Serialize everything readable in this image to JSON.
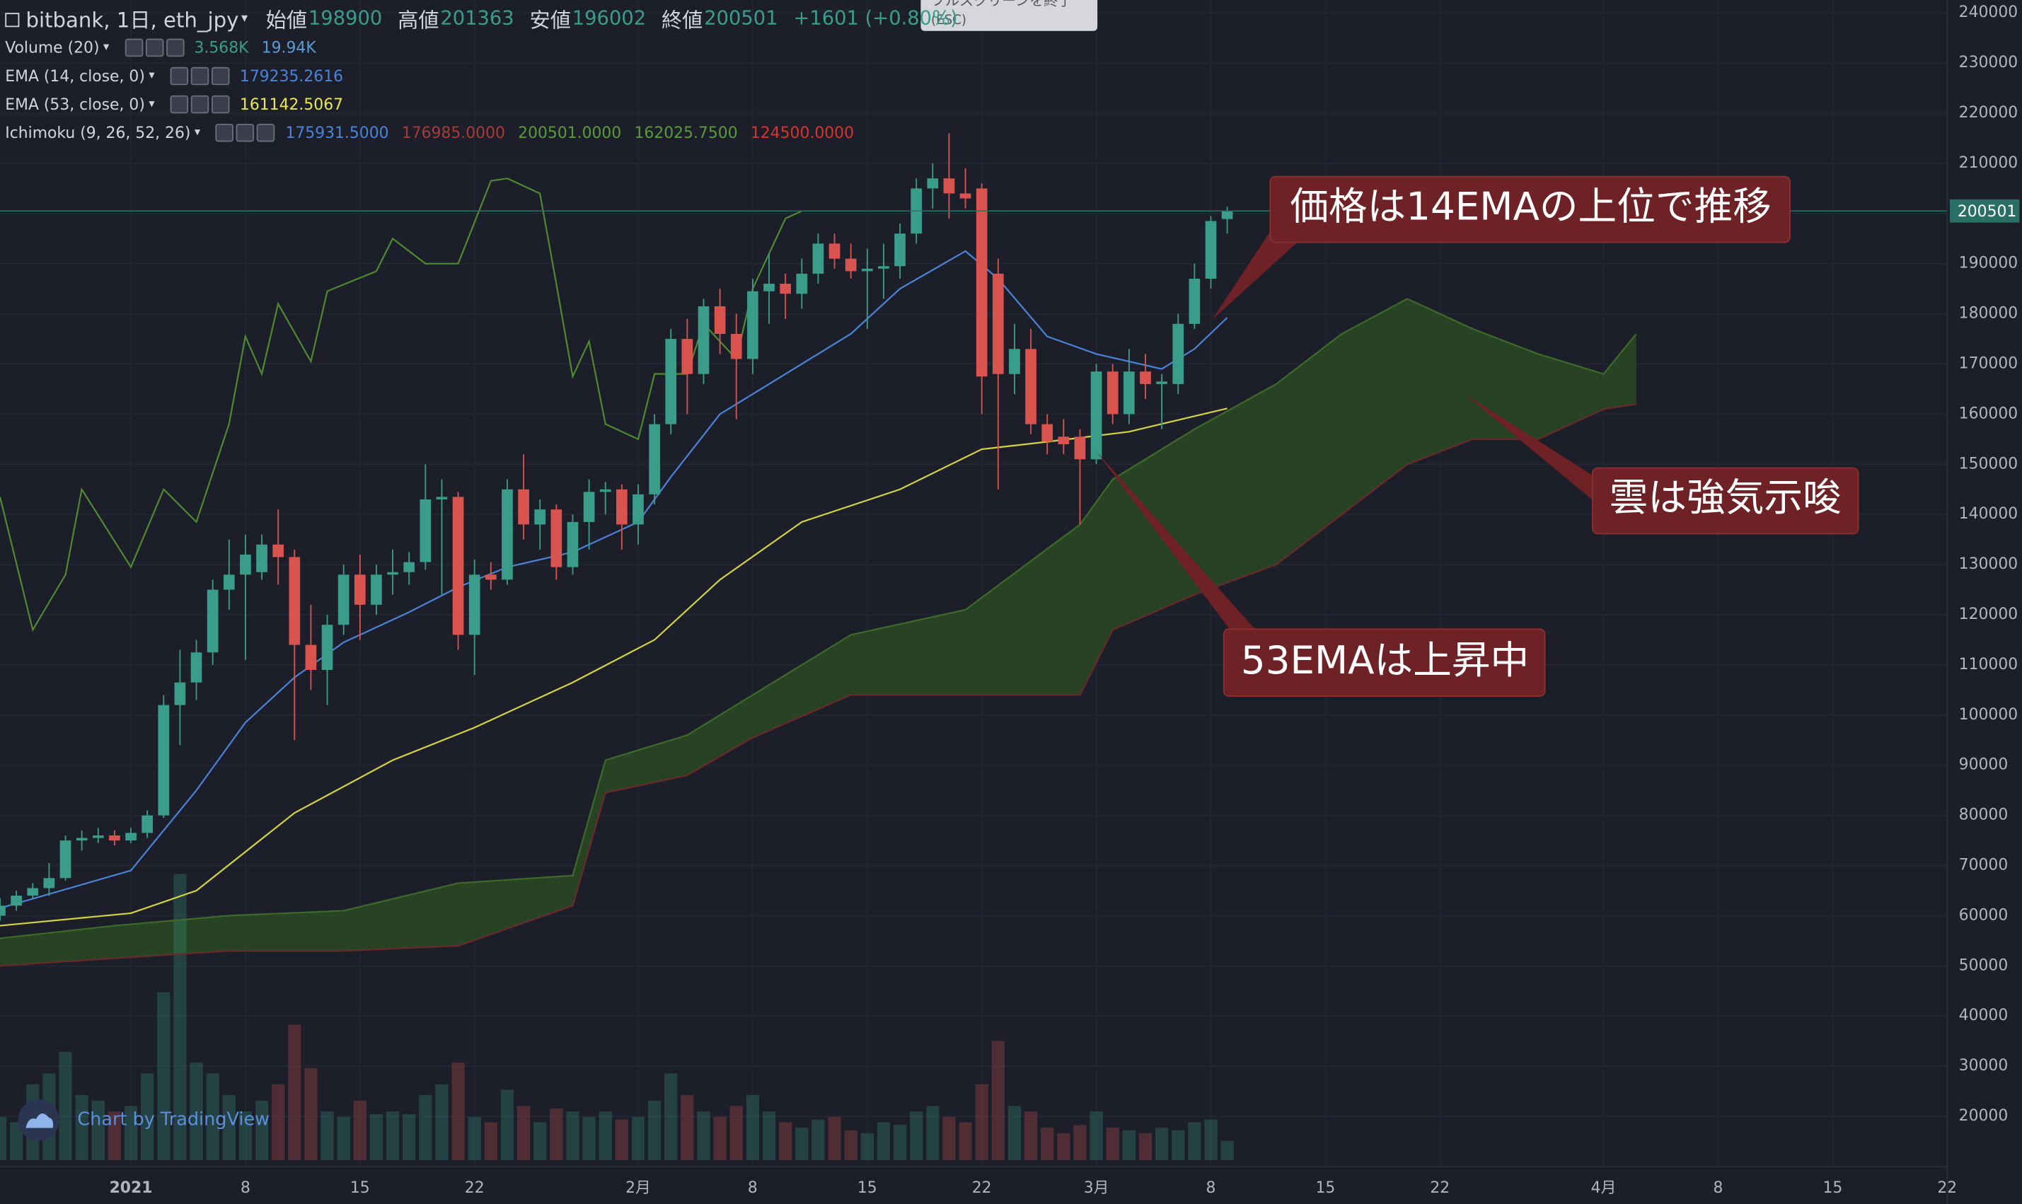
{
  "chart_data": {
    "type": "candlestick",
    "header": {
      "symbol": "bitbank, 1日, eth_jpy",
      "stats": [
        {
          "label": "始値",
          "value": 198900
        },
        {
          "label": "高値",
          "value": 201363
        },
        {
          "label": "安値",
          "value": 196002
        },
        {
          "label": "終値",
          "value": 200501
        }
      ],
      "change": "+1601 (+0.80%)"
    },
    "tooltip": [
      "フルスクリーンを終了",
      "(ESC)"
    ],
    "x": [
      "2020-12-24",
      "2020-12-25",
      "2020-12-26",
      "2020-12-27",
      "2020-12-28",
      "2020-12-29",
      "2020-12-30",
      "2020-12-31",
      "2021-01-01",
      "2021-01-02",
      "2021-01-03",
      "2021-01-04",
      "2021-01-05",
      "2021-01-06",
      "2021-01-07",
      "2021-01-08",
      "2021-01-09",
      "2021-01-10",
      "2021-01-11",
      "2021-01-12",
      "2021-01-13",
      "2021-01-14",
      "2021-01-15",
      "2021-01-16",
      "2021-01-17",
      "2021-01-18",
      "2021-01-19",
      "2021-01-20",
      "2021-01-21",
      "2021-01-22",
      "2021-01-23",
      "2021-01-24",
      "2021-01-25",
      "2021-01-26",
      "2021-01-27",
      "2021-01-28",
      "2021-01-29",
      "2021-01-30",
      "2021-01-31",
      "2021-02-01",
      "2021-02-02",
      "2021-02-03",
      "2021-02-04",
      "2021-02-05",
      "2021-02-06",
      "2021-02-07",
      "2021-02-08",
      "2021-02-09",
      "2021-02-10",
      "2021-02-11",
      "2021-02-12",
      "2021-02-13",
      "2021-02-14",
      "2021-02-15",
      "2021-02-16",
      "2021-02-17",
      "2021-02-18",
      "2021-02-19",
      "2021-02-20",
      "2021-02-21",
      "2021-02-22",
      "2021-02-23",
      "2021-02-24",
      "2021-02-25",
      "2021-02-26",
      "2021-02-27",
      "2021-02-28",
      "2021-03-01",
      "2021-03-02",
      "2021-03-03",
      "2021-03-04",
      "2021-03-05",
      "2021-03-06",
      "2021-03-07",
      "2021-03-08",
      "2021-03-09"
    ],
    "open": [
      60000,
      62000,
      64000,
      65500,
      67500,
      75000,
      75500,
      76000,
      75000,
      76500,
      80000,
      102000,
      106500,
      112500,
      125000,
      128000,
      128500,
      134000,
      131500,
      114000,
      109000,
      118000,
      128000,
      122000,
      128000,
      128500,
      130500,
      143000,
      143500,
      116000,
      128000,
      127000,
      145000,
      138000,
      141000,
      129500,
      138500,
      144500,
      145000,
      138000,
      144000,
      158000,
      175000,
      168000,
      181500,
      176000,
      171000,
      184500,
      186000,
      184000,
      188000,
      194000,
      191000,
      188500,
      189000,
      189500,
      196000,
      205000,
      207000,
      204000,
      205000,
      188000,
      168000,
      173000,
      158000,
      155500,
      155500,
      151000,
      168500,
      160000,
      168500,
      166000,
      166000,
      178000,
      187000,
      198900
    ],
    "high": [
      63500,
      65000,
      66500,
      70500,
      76000,
      77000,
      77500,
      77000,
      77500,
      81000,
      104000,
      113000,
      115000,
      127000,
      135000,
      136000,
      136000,
      141000,
      133000,
      122000,
      120000,
      130000,
      132000,
      130000,
      133000,
      132500,
      150000,
      147000,
      144500,
      131000,
      130500,
      147000,
      152000,
      143000,
      142000,
      140000,
      147000,
      146500,
      146000,
      146000,
      160000,
      177000,
      179000,
      183000,
      185000,
      180000,
      187000,
      192000,
      188000,
      191000,
      196000,
      196000,
      194000,
      193000,
      194000,
      198000,
      207000,
      210000,
      216000,
      209000,
      206000,
      191000,
      178000,
      177000,
      160000,
      159000,
      157000,
      170000,
      170000,
      173000,
      172000,
      168000,
      180000,
      190000,
      199500,
      201363
    ],
    "low": [
      59000,
      61000,
      63500,
      64000,
      67000,
      73000,
      74500,
      74000,
      74500,
      75500,
      79500,
      94000,
      103000,
      110000,
      121000,
      111000,
      127000,
      126000,
      95000,
      105000,
      102000,
      116000,
      115000,
      120000,
      124000,
      126000,
      129000,
      124000,
      113000,
      108000,
      125000,
      126000,
      135000,
      133000,
      127000,
      128000,
      133000,
      140000,
      133000,
      134000,
      142000,
      156000,
      160000,
      166000,
      172000,
      159000,
      168000,
      178000,
      179000,
      181000,
      186000,
      189000,
      187000,
      177000,
      183000,
      187000,
      194000,
      201000,
      199000,
      201000,
      160000,
      145000,
      164000,
      156000,
      152000,
      152000,
      138000,
      150000,
      158000,
      158000,
      163000,
      157000,
      164000,
      177000,
      185000,
      196002
    ],
    "close": [
      62000,
      64000,
      65500,
      67500,
      75000,
      75500,
      76000,
      75000,
      76500,
      80000,
      102000,
      106500,
      112500,
      125000,
      128000,
      132000,
      134000,
      131500,
      114000,
      109000,
      118000,
      128000,
      122000,
      128000,
      128500,
      130500,
      143000,
      143500,
      116000,
      128000,
      127000,
      145000,
      138000,
      141000,
      129500,
      138500,
      144500,
      145000,
      138000,
      144000,
      158000,
      175000,
      168000,
      181500,
      176000,
      171000,
      184500,
      186000,
      184000,
      188000,
      194000,
      191000,
      188500,
      189000,
      189500,
      196000,
      205000,
      207000,
      204000,
      203000,
      167500,
      168000,
      173000,
      158000,
      154500,
      154000,
      151000,
      168500,
      160000,
      168500,
      166000,
      166500,
      178000,
      187000,
      198500,
      200501
    ],
    "volume": [
      8000,
      7000,
      14000,
      16000,
      20000,
      12000,
      11000,
      9000,
      10000,
      16000,
      31000,
      52800,
      18000,
      16000,
      12000,
      9000,
      11000,
      14000,
      25000,
      17000,
      9000,
      8000,
      11000,
      8500,
      9000,
      8500,
      12000,
      14000,
      18000,
      8000,
      7000,
      13000,
      10000,
      7000,
      9500,
      9000,
      8000,
      9000,
      7500,
      8000,
      11000,
      16000,
      12000,
      9000,
      8000,
      10000,
      12000,
      9000,
      7000,
      6000,
      7500,
      8000,
      5500,
      5000,
      7000,
      6500,
      9000,
      10000,
      8000,
      7000,
      14000,
      22000,
      10000,
      9000,
      6000,
      5000,
      6500,
      9000,
      6000,
      5500,
      5000,
      6000,
      5500,
      7000,
      7500,
      3568
    ],
    "up_color": "#3a9d8a",
    "down_color": "#d9534f",
    "indicators": [
      {
        "name": "Volume (20)",
        "readouts": [
          {
            "text": "3.568K",
            "color": "#3a9d8a"
          },
          {
            "text": "19.94K",
            "color": "#5b9bd5"
          }
        ],
        "lines": []
      },
      {
        "name": "EMA (14, close, 0)",
        "readouts": [
          {
            "text": "179235.2616",
            "color": "#4a84d8"
          }
        ],
        "lines": [
          {
            "color": "#4a84d8",
            "x": [
              "2020-12-24",
              "2021-01-01",
              "2021-01-05",
              "2021-01-08",
              "2021-01-11",
              "2021-01-14",
              "2021-01-18",
              "2021-01-21",
              "2021-01-24",
              "2021-01-28",
              "2021-02-01",
              "2021-02-03",
              "2021-02-06",
              "2021-02-10",
              "2021-02-14",
              "2021-02-17",
              "2021-02-21",
              "2021-02-23",
              "2021-02-26",
              "2021-03-01",
              "2021-03-05",
              "2021-03-07",
              "2021-03-09"
            ],
            "values": [
              61500,
              69000,
              85000,
              98500,
              107500,
              114500,
              120500,
              125500,
              129500,
              132500,
              138500,
              147500,
              160000,
              168000,
              176000,
              185000,
              192500,
              187000,
              175500,
              172000,
              169000,
              173000,
              179235
            ]
          }
        ]
      },
      {
        "name": "EMA (53, close, 0)",
        "readouts": [
          {
            "text": "161142.5067",
            "color": "#e8e84a"
          }
        ],
        "lines": [
          {
            "color": "#d4d43c",
            "x": [
              "2020-12-24",
              "2021-01-01",
              "2021-01-05",
              "2021-01-11",
              "2021-01-17",
              "2021-01-22",
              "2021-01-28",
              "2021-02-02",
              "2021-02-06",
              "2021-02-11",
              "2021-02-17",
              "2021-02-22",
              "2021-02-26",
              "2021-03-03",
              "2021-03-09"
            ],
            "values": [
              58000,
              60500,
              65000,
              80500,
              91000,
              97500,
              106500,
              115000,
              127000,
              138500,
              145000,
              153000,
              154500,
              156500,
              161142
            ]
          }
        ]
      },
      {
        "name": "Ichimoku (9, 26, 52, 26)",
        "readouts": [
          {
            "text": "175931.5000",
            "color": "#4a84d8"
          },
          {
            "text": "176985.0000",
            "color": "#a83a3a"
          },
          {
            "text": "200501.0000",
            "color": "#5a9a3a"
          },
          {
            "text": "162025.7500",
            "color": "#5a9a3a"
          },
          {
            "text": "124500.0000",
            "color": "#d9342b"
          }
        ],
        "cloud_color": "#2a4a22",
        "lines": [
          {
            "color": "#4f8a2f",
            "x": [
              "2020-12-24",
              "2020-12-26",
              "2020-12-28",
              "2020-12-29",
              "2021-01-01",
              "2021-01-03",
              "2021-01-05",
              "2021-01-07",
              "2021-01-08",
              "2021-01-09",
              "2021-01-10",
              "2021-01-12",
              "2021-01-13",
              "2021-01-16",
              "2021-01-17",
              "2021-01-19",
              "2021-01-21",
              "2021-01-23",
              "2021-01-24",
              "2021-01-26",
              "2021-01-27",
              "2021-01-28",
              "2021-01-29",
              "2021-01-30",
              "2021-02-01",
              "2021-02-02",
              "2021-02-04",
              "2021-02-05",
              "2021-02-07",
              "2021-02-08",
              "2021-02-10",
              "2021-02-11"
            ],
            "values": [
              143500,
              117000,
              128000,
              145000,
              129500,
              145000,
              138500,
              158000,
              175500,
              168000,
              182000,
              170500,
              184500,
              188500,
              195000,
              190000,
              190000,
              206500,
              207000,
              204000,
              186000,
              167500,
              174500,
              158000,
              155000,
              168000,
              168000,
              178000,
              171000,
              185000,
              199000,
              200500
            ]
          },
          {
            "color": "#3c6b2a",
            "x": [
              "2020-12-24",
              "2020-12-31",
              "2021-01-07",
              "2021-01-14",
              "2021-01-21",
              "2021-01-28",
              "2021-01-30",
              "2021-02-04",
              "2021-02-08",
              "2021-02-14",
              "2021-02-21",
              "2021-02-28",
              "2021-03-02",
              "2021-03-07",
              "2021-03-12",
              "2021-03-16",
              "2021-03-20",
              "2021-03-24",
              "2021-03-28",
              "2021-04-01",
              "2021-04-03"
            ],
            "values": [
              55500,
              58000,
              60000,
              61000,
              66500,
              68000,
              91000,
              96000,
              104000,
              116000,
              121000,
              138000,
              147000,
              157000,
              166000,
              176000,
              183000,
              177000,
              172000,
              168000,
              176000
            ]
          },
          {
            "color": "#6b2a2a",
            "x": [
              "2020-12-24",
              "2020-12-31",
              "2021-01-07",
              "2021-01-14",
              "2021-01-21",
              "2021-01-28",
              "2021-01-30",
              "2021-02-04",
              "2021-02-08",
              "2021-02-14",
              "2021-02-21",
              "2021-02-28",
              "2021-03-02",
              "2021-03-07",
              "2021-03-12",
              "2021-03-16",
              "2021-03-20",
              "2021-03-24",
              "2021-03-28",
              "2021-04-01",
              "2021-04-03"
            ],
            "values": [
              50000,
              51500,
              53000,
              53000,
              54000,
              62000,
              84500,
              88000,
              95500,
              104000,
              104000,
              104000,
              117000,
              124000,
              130000,
              140000,
              150000,
              155000,
              155000,
              161000,
              162000
            ]
          }
        ]
      }
    ],
    "ylim": [
      9970,
      242570
    ],
    "yticks": [
      20000,
      30000,
      40000,
      50000,
      60000,
      70000,
      80000,
      90000,
      100000,
      110000,
      120000,
      130000,
      140000,
      150000,
      160000,
      170000,
      180000,
      190000,
      200000,
      210000,
      220000,
      230000,
      240000
    ],
    "grid": true,
    "xlim": [
      "2020-12-24",
      "2021-04-22"
    ],
    "xticks": [
      {
        "value": "2021-01-01",
        "label": "2021"
      },
      {
        "value": "2021-01-08",
        "label": "8"
      },
      {
        "value": "2021-01-15",
        "label": "15"
      },
      {
        "value": "2021-01-22",
        "label": "22"
      },
      {
        "value": "2021-02-01",
        "label": "2月"
      },
      {
        "value": "2021-02-08",
        "label": "8"
      },
      {
        "value": "2021-02-15",
        "label": "15"
      },
      {
        "value": "2021-02-22",
        "label": "22"
      },
      {
        "value": "2021-03-01",
        "label": "3月"
      },
      {
        "value": "2021-03-08",
        "label": "8"
      },
      {
        "value": "2021-03-15",
        "label": "15"
      },
      {
        "value": "2021-03-22",
        "label": "22"
      },
      {
        "value": "2021-04-01",
        "label": "4月"
      },
      {
        "value": "2021-04-08",
        "label": "8"
      },
      {
        "value": "2021-04-15",
        "label": "15"
      },
      {
        "value": "2021-04-22",
        "label": "22"
      }
    ],
    "annotations": [
      "価格は14EMAの上位で推移",
      "雲は強気示唆",
      "53EMAは上昇中"
    ],
    "watermark": "Chart by TradingView"
  }
}
